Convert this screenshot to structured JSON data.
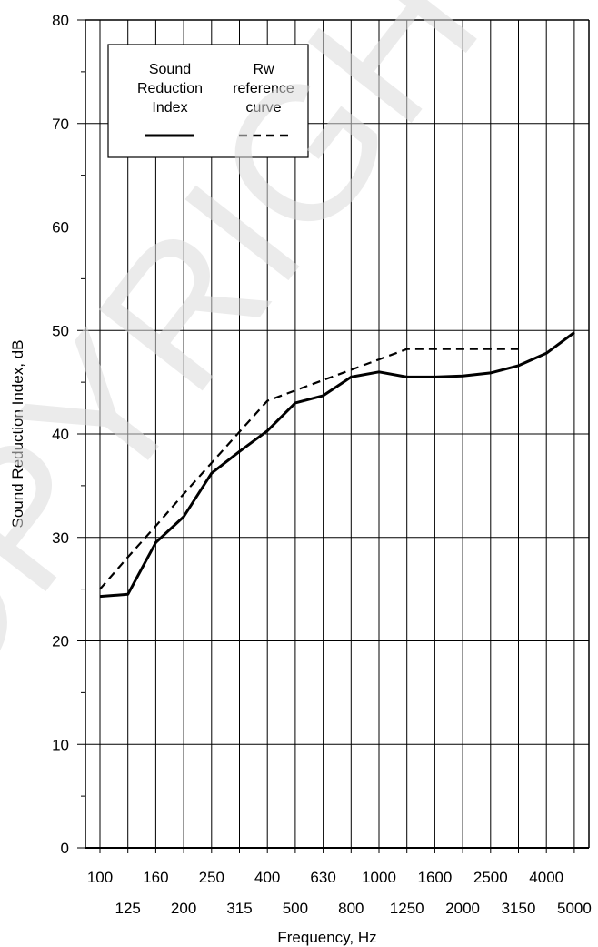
{
  "watermark": "COPYRIGHT",
  "chart_data": {
    "type": "line",
    "title": "",
    "xlabel": "Frequency, Hz",
    "ylabel": "Sound Reduction Index, dB",
    "ylim": [
      0,
      80
    ],
    "yticks": [
      0,
      10,
      20,
      30,
      40,
      50,
      60,
      70,
      80
    ],
    "grid": true,
    "legend_position": "top-left",
    "categories": [
      "100",
      "125",
      "160",
      "200",
      "250",
      "315",
      "400",
      "500",
      "630",
      "800",
      "1000",
      "1250",
      "1600",
      "2000",
      "2500",
      "3150",
      "4000",
      "5000"
    ],
    "series": [
      {
        "name": "Sound Reduction Index",
        "style": "solid",
        "color": "#000000",
        "values": [
          24.3,
          24.5,
          29.5,
          32.0,
          36.2,
          38.3,
          40.3,
          43.0,
          43.7,
          45.5,
          46.0,
          45.5,
          45.5,
          45.6,
          45.9,
          46.6,
          47.8,
          49.8
        ]
      },
      {
        "name": "Rw reference curve",
        "style": "dashed",
        "color": "#000000",
        "values": [
          25.0,
          28.1,
          31.1,
          34.2,
          37.2,
          40.2,
          43.2,
          44.2,
          45.2,
          46.2,
          47.2,
          48.2,
          48.2,
          48.2,
          48.2,
          48.2,
          null,
          null
        ]
      }
    ],
    "legend": {
      "entries": [
        {
          "lines": [
            "Sound",
            "Reduction",
            "Index"
          ],
          "style": "solid"
        },
        {
          "lines": [
            "Rw",
            "reference",
            "curve"
          ],
          "style": "dashed"
        }
      ]
    }
  }
}
